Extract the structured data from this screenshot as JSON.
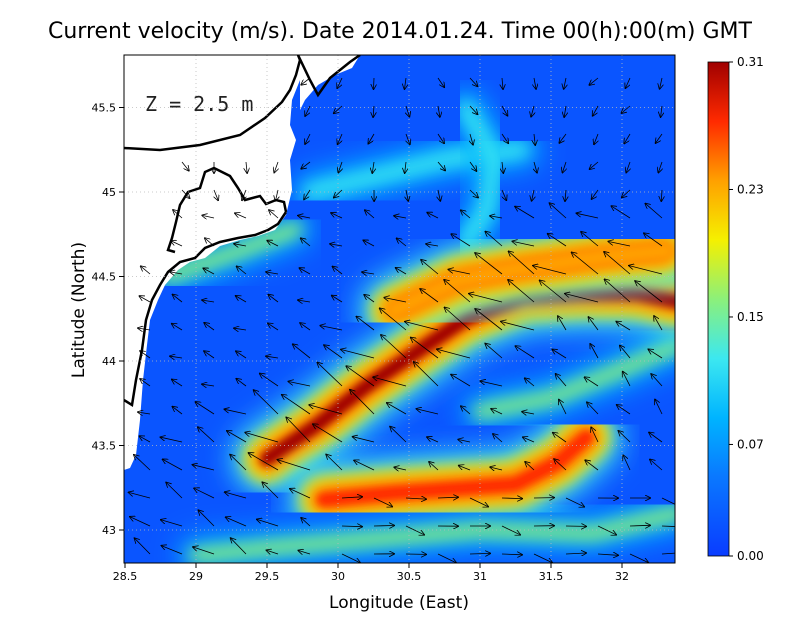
{
  "chart_data": {
    "type": "heatmap",
    "title": "Current velocity (m/s). Date 2014.01.24. Time 00(h):00(m) GMT",
    "annotation": "Z = 2.5 m",
    "xlabel": "Longitude (East)",
    "ylabel": "Latitude (North)",
    "xlim": [
      28.5,
      32.4
    ],
    "ylim": [
      42.8,
      45.8
    ],
    "xticks": [
      "28.5",
      "29",
      "29.5",
      "30",
      "30.5",
      "31",
      "31.5",
      "32"
    ],
    "yticks": [
      "43",
      "43.5",
      "44",
      "44.5",
      "45",
      "45.5"
    ],
    "grid": true,
    "colorbar": {
      "ticks": [
        "0.00",
        "0.07",
        "0.15",
        "0.23",
        "0.31"
      ],
      "range": [
        0.0,
        0.31
      ],
      "colors": [
        "#0a3cff",
        "#00b4ff",
        "#3ce8f0",
        "#8cf07a",
        "#f5f000",
        "#ffa000",
        "#ff2a00",
        "#a00000"
      ]
    },
    "jets": [
      {
        "name": "main-jet",
        "path": [
          [
            29.5,
            43.42
          ],
          [
            29.85,
            43.62
          ],
          [
            30.2,
            43.85
          ],
          [
            30.55,
            44.05
          ],
          [
            30.9,
            44.25
          ],
          [
            31.3,
            44.38
          ],
          [
            31.7,
            44.4
          ],
          [
            32.1,
            44.4
          ],
          [
            32.4,
            44.35
          ]
        ],
        "speed": 0.31
      },
      {
        "name": "southern-jet",
        "path": [
          [
            29.9,
            43.18
          ],
          [
            30.4,
            43.22
          ],
          [
            30.9,
            43.25
          ],
          [
            31.25,
            43.27
          ],
          [
            31.55,
            43.4
          ],
          [
            31.75,
            43.55
          ]
        ],
        "speed": 0.26
      },
      {
        "name": "northern-jet",
        "path": [
          [
            30.4,
            44.3
          ],
          [
            30.85,
            44.48
          ],
          [
            31.3,
            44.55
          ],
          [
            31.9,
            44.62
          ],
          [
            32.3,
            44.65
          ]
        ],
        "speed": 0.22
      }
    ],
    "moderate_flows": [
      {
        "path": [
          [
            29.0,
            42.85
          ],
          [
            29.6,
            42.9
          ],
          [
            30.3,
            42.95
          ],
          [
            31.0,
            43.0
          ],
          [
            31.8,
            42.98
          ],
          [
            32.4,
            43.1
          ]
        ],
        "speed": 0.14
      },
      {
        "path": [
          [
            31.0,
            43.7
          ],
          [
            31.5,
            43.78
          ],
          [
            32.0,
            43.95
          ],
          [
            32.4,
            44.1
          ]
        ],
        "speed": 0.12
      },
      {
        "path": [
          [
            28.8,
            44.5
          ],
          [
            29.3,
            44.65
          ],
          [
            29.7,
            44.78
          ]
        ],
        "speed": 0.12
      },
      {
        "path": [
          [
            29.8,
            45.0
          ],
          [
            30.3,
            45.1
          ],
          [
            30.8,
            45.2
          ],
          [
            31.3,
            45.25
          ]
        ],
        "speed": 0.09
      },
      {
        "path": [
          [
            30.9,
            45.5
          ],
          [
            31.1,
            45.2
          ],
          [
            31.05,
            44.9
          ],
          [
            30.9,
            44.7
          ]
        ],
        "speed": 0.1
      }
    ]
  }
}
